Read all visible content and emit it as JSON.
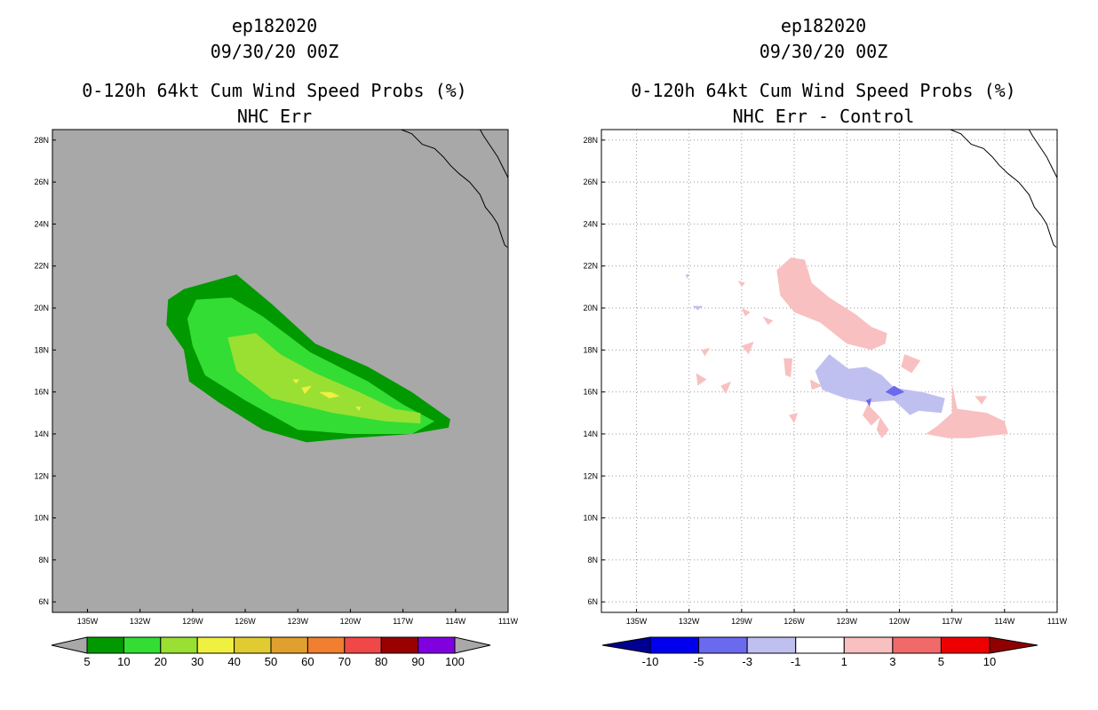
{
  "chart_data": [
    {
      "type": "heatmap",
      "title_lines": [
        "ep182020",
        "09/30/20 00Z",
        "0-120h 64kt Cum Wind Speed Probs (%)",
        "NHC Err"
      ],
      "xlabel": "",
      "ylabel": "",
      "x_ticks": [
        "135W",
        "132W",
        "129W",
        "126W",
        "123W",
        "120W",
        "117W",
        "114W",
        "111W"
      ],
      "y_ticks": [
        "6N",
        "8N",
        "10N",
        "12N",
        "14N",
        "16N",
        "18N",
        "20N",
        "22N",
        "24N",
        "26N",
        "28N"
      ],
      "xlim": [
        -137,
        -111
      ],
      "ylim": [
        5.5,
        28.5
      ],
      "grid": false,
      "background_color": "#a8a8a8",
      "colorbar": {
        "labels": [
          "5",
          "10",
          "20",
          "30",
          "40",
          "50",
          "60",
          "70",
          "80",
          "90",
          "100"
        ],
        "colors": [
          "#009900",
          "#33dd33",
          "#99e033",
          "#f0f040",
          "#e0cc30",
          "#e0a030",
          "#f08030",
          "#f04848",
          "#990000",
          "#8000e0"
        ],
        "end_color": "#a8a8a8"
      },
      "contours": [
        {
          "level": 5,
          "color": "#009900",
          "points": [
            [
              -130.5,
              19.2
            ],
            [
              -130.4,
              20.4
            ],
            [
              -129.5,
              20.9
            ],
            [
              -126.5,
              21.6
            ],
            [
              -124.5,
              20.2
            ],
            [
              -122.0,
              18.3
            ],
            [
              -119.0,
              17.2
            ],
            [
              -116.5,
              16.0
            ],
            [
              -114.3,
              14.7
            ],
            [
              -114.4,
              14.3
            ],
            [
              -116.5,
              14.0
            ],
            [
              -120.0,
              13.8
            ],
            [
              -122.5,
              13.6
            ],
            [
              -125.0,
              14.2
            ],
            [
              -127.5,
              15.5
            ],
            [
              -129.2,
              16.5
            ],
            [
              -129.5,
              18.0
            ],
            [
              -130.5,
              19.2
            ]
          ]
        },
        {
          "level": 10,
          "color": "#33dd33",
          "points": [
            [
              -129.3,
              19.5
            ],
            [
              -128.8,
              20.4
            ],
            [
              -126.8,
              20.5
            ],
            [
              -125.0,
              19.6
            ],
            [
              -122.3,
              17.9
            ],
            [
              -119.0,
              16.5
            ],
            [
              -117.0,
              15.4
            ],
            [
              -115.2,
              14.6
            ],
            [
              -116.5,
              14.0
            ],
            [
              -120.0,
              14.0
            ],
            [
              -123.0,
              14.2
            ],
            [
              -126.0,
              15.6
            ],
            [
              -128.3,
              16.8
            ],
            [
              -129.0,
              18.2
            ],
            [
              -129.3,
              19.5
            ]
          ]
        },
        {
          "level": 20,
          "color": "#99e033",
          "points": [
            [
              -127.0,
              18.6
            ],
            [
              -125.4,
              18.8
            ],
            [
              -124.0,
              17.8
            ],
            [
              -122.0,
              16.9
            ],
            [
              -119.5,
              16.0
            ],
            [
              -117.5,
              15.2
            ],
            [
              -116.0,
              15.0
            ],
            [
              -116.0,
              14.5
            ],
            [
              -118.0,
              14.6
            ],
            [
              -121.0,
              15.0
            ],
            [
              -124.5,
              15.7
            ],
            [
              -126.5,
              17.0
            ],
            [
              -127.0,
              18.6
            ]
          ]
        }
      ],
      "hotspots": [
        {
          "level": 30,
          "points": [
            [
              -122.8,
              16.2
            ],
            [
              -122.2,
              16.3
            ],
            [
              -122.6,
              15.9
            ]
          ]
        },
        {
          "level": 30,
          "points": [
            [
              -121.8,
              16.0
            ],
            [
              -121.1,
              16.0
            ],
            [
              -120.6,
              15.8
            ],
            [
              -121.2,
              15.7
            ]
          ]
        },
        {
          "level": 30,
          "points": [
            [
              -123.3,
              16.6
            ],
            [
              -122.9,
              16.6
            ],
            [
              -123.1,
              16.4
            ]
          ]
        },
        {
          "level": 30,
          "points": [
            [
              -119.7,
              15.3
            ],
            [
              -119.4,
              15.3
            ],
            [
              -119.5,
              15.1
            ]
          ]
        }
      ]
    },
    {
      "type": "heatmap",
      "title_lines": [
        "ep182020",
        "09/30/20 00Z",
        "0-120h 64kt Cum Wind Speed Probs (%)",
        "NHC Err - Control"
      ],
      "xlabel": "",
      "ylabel": "",
      "x_ticks": [
        "135W",
        "132W",
        "129W",
        "126W",
        "123W",
        "120W",
        "117W",
        "114W",
        "111W"
      ],
      "y_ticks": [
        "6N",
        "8N",
        "10N",
        "12N",
        "14N",
        "16N",
        "18N",
        "20N",
        "22N",
        "24N",
        "26N",
        "28N"
      ],
      "xlim": [
        -137,
        -111
      ],
      "ylim": [
        5.5,
        28.5
      ],
      "grid": true,
      "background_color": "#ffffff",
      "colorbar": {
        "labels": [
          "-10",
          "-5",
          "-3",
          "-1",
          "1",
          "3",
          "5",
          "10"
        ],
        "colors": [
          "#000090",
          "#0000ee",
          "#6a6aee",
          "#c0c0f0",
          "#ffffff",
          "#f8c0c0",
          "#f06a6a",
          "#ee0000",
          "#900000"
        ]
      },
      "contours": [
        {
          "level": 1,
          "color": "#f8c0c0",
          "points": [
            [
              -127.0,
              21.8
            ],
            [
              -126.2,
              22.4
            ],
            [
              -125.4,
              22.3
            ],
            [
              -125.0,
              21.2
            ],
            [
              -124.0,
              20.5
            ],
            [
              -122.5,
              19.7
            ],
            [
              -121.6,
              19.1
            ],
            [
              -120.7,
              18.8
            ],
            [
              -120.8,
              18.3
            ],
            [
              -121.6,
              18.0
            ],
            [
              -123.0,
              18.3
            ],
            [
              -124.5,
              19.3
            ],
            [
              -126.0,
              19.8
            ],
            [
              -126.8,
              20.6
            ],
            [
              -127.0,
              21.8
            ]
          ]
        },
        {
          "level": 1,
          "color": "#f8c0c0",
          "points": [
            [
              -117.0,
              16.4
            ],
            [
              -116.7,
              15.2
            ],
            [
              -115.0,
              15.0
            ],
            [
              -114.0,
              14.6
            ],
            [
              -113.8,
              14.0
            ],
            [
              -115.0,
              13.9
            ],
            [
              -116.0,
              13.8
            ],
            [
              -117.2,
              13.8
            ],
            [
              -118.5,
              14.0
            ],
            [
              -117.8,
              14.4
            ],
            [
              -117.0,
              15.0
            ],
            [
              -117.0,
              16.4
            ]
          ]
        },
        {
          "level": 1,
          "color": "#f8c0c0",
          "points": [
            [
              -131.3,
              18.0
            ],
            [
              -130.8,
              18.1
            ],
            [
              -131.1,
              17.7
            ]
          ]
        },
        {
          "level": 1,
          "color": "#f8c0c0",
          "points": [
            [
              -129.0,
              18.2
            ],
            [
              -128.3,
              18.4
            ],
            [
              -128.6,
              17.8
            ]
          ]
        },
        {
          "level": 1,
          "color": "#f8c0c0",
          "points": [
            [
              -126.6,
              17.6
            ],
            [
              -126.1,
              17.6
            ],
            [
              -126.2,
              16.7
            ],
            [
              -126.5,
              16.8
            ]
          ]
        },
        {
          "level": 1,
          "color": "#f8c0c0",
          "points": [
            [
              -131.6,
              16.9
            ],
            [
              -131.0,
              16.6
            ],
            [
              -131.5,
              16.3
            ]
          ]
        },
        {
          "level": 1,
          "color": "#f8c0c0",
          "points": [
            [
              -130.2,
              16.3
            ],
            [
              -129.6,
              16.5
            ],
            [
              -129.9,
              15.9
            ]
          ]
        },
        {
          "level": 1,
          "color": "#f8c0c0",
          "points": [
            [
              -125.1,
              16.6
            ],
            [
              -124.4,
              16.3
            ],
            [
              -125.0,
              16.1
            ]
          ]
        },
        {
          "level": 1,
          "color": "#f8c0c0",
          "points": [
            [
              -119.7,
              17.8
            ],
            [
              -118.8,
              17.5
            ],
            [
              -119.3,
              16.9
            ],
            [
              -119.9,
              17.2
            ]
          ]
        },
        {
          "level": 1,
          "color": "#f8c0c0",
          "points": [
            [
              -121.8,
              15.4
            ],
            [
              -121.1,
              14.8
            ],
            [
              -121.6,
              14.4
            ],
            [
              -122.1,
              14.9
            ]
          ]
        },
        {
          "level": 1,
          "color": "#f8c0c0",
          "points": [
            [
              -121.1,
              14.8
            ],
            [
              -120.6,
              14.2
            ],
            [
              -121.0,
              13.8
            ],
            [
              -121.3,
              14.2
            ]
          ]
        },
        {
          "level": 1,
          "color": "#f8c0c0",
          "points": [
            [
              -115.7,
              15.8
            ],
            [
              -115.0,
              15.8
            ],
            [
              -115.3,
              15.4
            ]
          ]
        },
        {
          "level": 1,
          "color": "#f8c0c0",
          "points": [
            [
              -126.3,
              14.9
            ],
            [
              -125.8,
              15.0
            ],
            [
              -126.0,
              14.5
            ]
          ]
        },
        {
          "level": 1,
          "color": "#f8c0c0",
          "points": [
            [
              -127.8,
              19.6
            ],
            [
              -127.2,
              19.4
            ],
            [
              -127.5,
              19.2
            ]
          ]
        },
        {
          "level": 1,
          "color": "#f8c0c0",
          "points": [
            [
              -129.0,
              20.0
            ],
            [
              -128.5,
              19.8
            ],
            [
              -128.8,
              19.6
            ]
          ]
        },
        {
          "level": 1,
          "color": "#f8c0c0",
          "points": [
            [
              -129.2,
              21.3
            ],
            [
              -128.8,
              21.2
            ],
            [
              -129.0,
              21.0
            ]
          ]
        },
        {
          "level": -1,
          "color": "#c0c0f0",
          "points": [
            [
              -124.8,
              17.0
            ],
            [
              -124.0,
              17.8
            ],
            [
              -122.9,
              17.1
            ],
            [
              -121.9,
              17.2
            ],
            [
              -121.0,
              16.8
            ],
            [
              -120.3,
              16.2
            ],
            [
              -118.7,
              16.0
            ],
            [
              -117.4,
              15.7
            ],
            [
              -117.6,
              15.0
            ],
            [
              -118.9,
              15.1
            ],
            [
              -119.4,
              14.9
            ],
            [
              -120.3,
              15.6
            ],
            [
              -121.8,
              15.5
            ],
            [
              -123.1,
              15.7
            ],
            [
              -124.4,
              16.1
            ],
            [
              -124.8,
              17.0
            ]
          ]
        },
        {
          "level": -1,
          "color": "#c0c0f0",
          "points": [
            [
              -131.8,
              20.1
            ],
            [
              -131.2,
              20.1
            ],
            [
              -131.5,
              19.9
            ]
          ]
        },
        {
          "level": -1,
          "color": "#c0c0f0",
          "points": [
            [
              -132.2,
              21.6
            ],
            [
              -132.0,
              21.6
            ],
            [
              -132.1,
              21.4
            ]
          ]
        },
        {
          "level": -3,
          "color": "#6a6aee",
          "points": [
            [
              -120.8,
              16.0
            ],
            [
              -120.3,
              16.3
            ],
            [
              -119.7,
              16.0
            ],
            [
              -120.3,
              15.8
            ]
          ]
        },
        {
          "level": -3,
          "color": "#6a6aee",
          "points": [
            [
              -121.9,
              15.6
            ],
            [
              -121.7,
              15.3
            ],
            [
              -121.6,
              15.7
            ]
          ]
        }
      ]
    }
  ]
}
